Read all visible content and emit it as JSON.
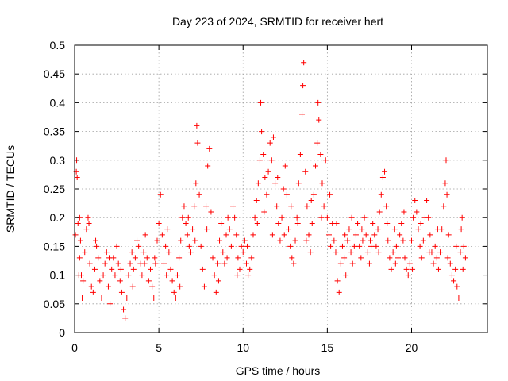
{
  "chart_data": {
    "type": "scatter",
    "title": "Day 223 of 2024, SRMTID for receiver hert",
    "xlabel": "GPS time / hours",
    "ylabel": "SRMTID / TECUs",
    "xlim": [
      0,
      24.5
    ],
    "ylim": [
      0,
      0.5
    ],
    "xticks": [
      0,
      5,
      10,
      15,
      20
    ],
    "xtick_labels": [
      "0",
      "5",
      "10",
      "15",
      "20"
    ],
    "yticks": [
      0,
      0.05,
      0.1,
      0.15,
      0.2,
      0.25,
      0.3,
      0.35,
      0.4,
      0.45,
      0.5
    ],
    "ytick_labels": [
      "0",
      "0.05",
      "0.1",
      "0.15",
      "0.2",
      "0.25",
      "0.3",
      "0.35",
      "0.4",
      "0.45",
      "0.5"
    ],
    "grid": true,
    "marker": "+",
    "color": "#ff0000",
    "series": [
      {
        "name": "SRMTID",
        "points": [
          [
            0.05,
            0.17
          ],
          [
            0.1,
            0.28
          ],
          [
            0.12,
            0.3
          ],
          [
            0.15,
            0.27
          ],
          [
            0.2,
            0.19
          ],
          [
            0.25,
            0.1
          ],
          [
            0.3,
            0.13
          ],
          [
            0.35,
            0.16
          ],
          [
            0.4,
            0.1
          ],
          [
            0.5,
            0.09
          ],
          [
            0.6,
            0.14
          ],
          [
            0.7,
            0.18
          ],
          [
            0.8,
            0.2
          ],
          [
            0.85,
            0.19
          ],
          [
            0.9,
            0.12
          ],
          [
            1.0,
            0.08
          ],
          [
            1.1,
            0.07
          ],
          [
            1.2,
            0.11
          ],
          [
            1.3,
            0.15
          ],
          [
            1.4,
            0.13
          ],
          [
            1.5,
            0.09
          ],
          [
            1.6,
            0.06
          ],
          [
            1.7,
            0.1
          ],
          [
            1.8,
            0.12
          ],
          [
            1.9,
            0.14
          ],
          [
            2.0,
            0.08
          ],
          [
            2.1,
            0.05
          ],
          [
            2.2,
            0.11
          ],
          [
            2.3,
            0.13
          ],
          [
            2.4,
            0.1
          ],
          [
            2.5,
            0.15
          ],
          [
            2.6,
            0.12
          ],
          [
            2.7,
            0.09
          ],
          [
            2.8,
            0.07
          ],
          [
            2.9,
            0.04
          ],
          [
            3.0,
            0.025
          ],
          [
            3.1,
            0.06
          ],
          [
            3.2,
            0.1
          ],
          [
            3.3,
            0.12
          ],
          [
            3.4,
            0.14
          ],
          [
            3.5,
            0.11
          ],
          [
            3.6,
            0.13
          ],
          [
            3.7,
            0.16
          ],
          [
            3.8,
            0.15
          ],
          [
            3.9,
            0.12
          ],
          [
            4.0,
            0.1
          ],
          [
            4.1,
            0.14
          ],
          [
            4.2,
            0.17
          ],
          [
            4.3,
            0.13
          ],
          [
            4.4,
            0.09
          ],
          [
            4.5,
            0.11
          ],
          [
            4.6,
            0.08
          ],
          [
            4.7,
            0.06
          ],
          [
            4.8,
            0.12
          ],
          [
            4.9,
            0.16
          ],
          [
            5.0,
            0.19
          ],
          [
            5.1,
            0.24
          ],
          [
            5.2,
            0.17
          ],
          [
            5.3,
            0.12
          ],
          [
            5.4,
            0.15
          ],
          [
            5.5,
            0.18
          ],
          [
            5.6,
            0.14
          ],
          [
            5.7,
            0.11
          ],
          [
            5.8,
            0.09
          ],
          [
            5.9,
            0.07
          ],
          [
            6.0,
            0.06
          ],
          [
            6.1,
            0.1
          ],
          [
            6.2,
            0.13
          ],
          [
            6.3,
            0.16
          ],
          [
            6.4,
            0.2
          ],
          [
            6.5,
            0.22
          ],
          [
            6.6,
            0.19
          ],
          [
            6.7,
            0.17
          ],
          [
            6.8,
            0.15
          ],
          [
            6.9,
            0.14
          ],
          [
            7.0,
            0.18
          ],
          [
            7.1,
            0.22
          ],
          [
            7.2,
            0.26
          ],
          [
            7.25,
            0.36
          ],
          [
            7.3,
            0.33
          ],
          [
            7.4,
            0.24
          ],
          [
            7.5,
            0.15
          ],
          [
            7.6,
            0.11
          ],
          [
            7.7,
            0.08
          ],
          [
            7.8,
            0.22
          ],
          [
            7.9,
            0.29
          ],
          [
            8.0,
            0.32
          ],
          [
            8.1,
            0.21
          ],
          [
            8.2,
            0.13
          ],
          [
            8.3,
            0.1
          ],
          [
            8.4,
            0.07
          ],
          [
            8.5,
            0.12
          ],
          [
            8.6,
            0.16
          ],
          [
            8.7,
            0.19
          ],
          [
            8.8,
            0.14
          ],
          [
            8.9,
            0.12
          ],
          [
            9.0,
            0.17
          ],
          [
            9.1,
            0.2
          ],
          [
            9.2,
            0.18
          ],
          [
            9.3,
            0.15
          ],
          [
            9.4,
            0.22
          ],
          [
            9.5,
            0.2
          ],
          [
            9.6,
            0.17
          ],
          [
            9.7,
            0.13
          ],
          [
            9.8,
            0.11
          ],
          [
            9.9,
            0.15
          ],
          [
            10.0,
            0.14
          ],
          [
            10.1,
            0.16
          ],
          [
            10.2,
            0.12
          ],
          [
            10.3,
            0.1
          ],
          [
            10.4,
            0.11
          ],
          [
            10.5,
            0.13
          ],
          [
            10.6,
            0.17
          ],
          [
            10.7,
            0.2
          ],
          [
            10.8,
            0.23
          ],
          [
            10.9,
            0.26
          ],
          [
            11.0,
            0.3
          ],
          [
            11.05,
            0.4
          ],
          [
            11.1,
            0.35
          ],
          [
            11.2,
            0.31
          ],
          [
            11.3,
            0.27
          ],
          [
            11.4,
            0.24
          ],
          [
            11.5,
            0.28
          ],
          [
            11.6,
            0.33
          ],
          [
            11.7,
            0.3
          ],
          [
            11.8,
            0.34
          ],
          [
            11.9,
            0.26
          ],
          [
            12.0,
            0.22
          ],
          [
            12.1,
            0.19
          ],
          [
            12.2,
            0.16
          ],
          [
            12.3,
            0.2
          ],
          [
            12.4,
            0.25
          ],
          [
            12.5,
            0.29
          ],
          [
            12.6,
            0.24
          ],
          [
            12.7,
            0.18
          ],
          [
            12.8,
            0.15
          ],
          [
            12.9,
            0.13
          ],
          [
            13.0,
            0.12
          ],
          [
            13.1,
            0.16
          ],
          [
            13.2,
            0.2
          ],
          [
            13.3,
            0.26
          ],
          [
            13.4,
            0.31
          ],
          [
            13.5,
            0.38
          ],
          [
            13.55,
            0.43
          ],
          [
            13.6,
            0.47
          ],
          [
            13.7,
            0.28
          ],
          [
            13.8,
            0.22
          ],
          [
            13.9,
            0.17
          ],
          [
            14.0,
            0.14
          ],
          [
            14.1,
            0.19
          ],
          [
            14.2,
            0.24
          ],
          [
            14.3,
            0.29
          ],
          [
            14.4,
            0.33
          ],
          [
            14.45,
            0.4
          ],
          [
            14.5,
            0.37
          ],
          [
            14.6,
            0.31
          ],
          [
            14.7,
            0.26
          ],
          [
            14.8,
            0.22
          ],
          [
            14.9,
            0.3
          ],
          [
            15.0,
            0.2
          ],
          [
            15.1,
            0.17
          ],
          [
            15.2,
            0.15
          ],
          [
            15.3,
            0.19
          ],
          [
            15.4,
            0.16
          ],
          [
            15.5,
            0.14
          ],
          [
            15.6,
            0.09
          ],
          [
            15.7,
            0.07
          ],
          [
            15.8,
            0.12
          ],
          [
            15.9,
            0.15
          ],
          [
            16.0,
            0.13
          ],
          [
            16.1,
            0.1
          ],
          [
            16.2,
            0.16
          ],
          [
            16.3,
            0.18
          ],
          [
            16.4,
            0.14
          ],
          [
            16.5,
            0.12
          ],
          [
            16.6,
            0.15
          ],
          [
            16.7,
            0.17
          ],
          [
            16.8,
            0.19
          ],
          [
            16.9,
            0.15
          ],
          [
            17.0,
            0.13
          ],
          [
            17.1,
            0.16
          ],
          [
            17.2,
            0.2
          ],
          [
            17.3,
            0.17
          ],
          [
            17.4,
            0.14
          ],
          [
            17.5,
            0.12
          ],
          [
            17.6,
            0.15
          ],
          [
            17.7,
            0.19
          ],
          [
            17.8,
            0.17
          ],
          [
            17.9,
            0.15
          ],
          [
            18.0,
            0.18
          ],
          [
            18.1,
            0.21
          ],
          [
            18.2,
            0.24
          ],
          [
            18.3,
            0.27
          ],
          [
            18.4,
            0.28
          ],
          [
            18.5,
            0.22
          ],
          [
            18.6,
            0.16
          ],
          [
            18.7,
            0.13
          ],
          [
            18.8,
            0.11
          ],
          [
            18.9,
            0.14
          ],
          [
            19.0,
            0.18
          ],
          [
            19.1,
            0.15
          ],
          [
            19.2,
            0.13
          ],
          [
            19.3,
            0.17
          ],
          [
            19.4,
            0.19
          ],
          [
            19.5,
            0.16
          ],
          [
            19.6,
            0.13
          ],
          [
            19.7,
            0.11
          ],
          [
            19.8,
            0.1
          ],
          [
            19.9,
            0.12
          ],
          [
            20.0,
            0.16
          ],
          [
            20.1,
            0.2
          ],
          [
            20.2,
            0.23
          ],
          [
            20.3,
            0.21
          ],
          [
            20.4,
            0.18
          ],
          [
            20.5,
            0.15
          ],
          [
            20.6,
            0.13
          ],
          [
            20.7,
            0.16
          ],
          [
            20.8,
            0.2
          ],
          [
            20.9,
            0.23
          ],
          [
            21.0,
            0.2
          ],
          [
            21.1,
            0.17
          ],
          [
            21.2,
            0.14
          ],
          [
            21.3,
            0.12
          ],
          [
            21.4,
            0.15
          ],
          [
            21.5,
            0.13
          ],
          [
            21.6,
            0.11
          ],
          [
            21.7,
            0.14
          ],
          [
            21.8,
            0.18
          ],
          [
            21.9,
            0.22
          ],
          [
            22.0,
            0.26
          ],
          [
            22.05,
            0.3
          ],
          [
            22.1,
            0.24
          ],
          [
            22.2,
            0.17
          ],
          [
            22.3,
            0.12
          ],
          [
            22.4,
            0.1
          ],
          [
            22.5,
            0.09
          ],
          [
            22.6,
            0.11
          ],
          [
            22.7,
            0.08
          ],
          [
            22.8,
            0.06
          ],
          [
            22.9,
            0.14
          ],
          [
            22.95,
            0.18
          ],
          [
            23.0,
            0.2
          ],
          [
            23.1,
            0.15
          ],
          [
            23.2,
            0.13
          ],
          [
            0.3,
            0.2
          ],
          [
            0.45,
            0.06
          ],
          [
            1.25,
            0.16
          ],
          [
            2.05,
            0.13
          ],
          [
            2.75,
            0.11
          ],
          [
            3.45,
            0.08
          ],
          [
            4.15,
            0.12
          ],
          [
            4.75,
            0.13
          ],
          [
            5.45,
            0.1
          ],
          [
            6.25,
            0.08
          ],
          [
            6.75,
            0.2
          ],
          [
            7.15,
            0.16
          ],
          [
            7.85,
            0.18
          ],
          [
            8.55,
            0.09
          ],
          [
            9.05,
            0.13
          ],
          [
            9.65,
            0.1
          ],
          [
            10.25,
            0.15
          ],
          [
            10.85,
            0.19
          ],
          [
            11.25,
            0.21
          ],
          [
            11.75,
            0.17
          ],
          [
            12.05,
            0.27
          ],
          [
            12.45,
            0.17
          ],
          [
            12.85,
            0.22
          ],
          [
            13.25,
            0.19
          ],
          [
            13.75,
            0.16
          ],
          [
            14.05,
            0.23
          ],
          [
            14.65,
            0.2
          ],
          [
            15.15,
            0.24
          ],
          [
            15.55,
            0.19
          ],
          [
            16.05,
            0.17
          ],
          [
            16.45,
            0.2
          ],
          [
            17.05,
            0.18
          ],
          [
            17.55,
            0.16
          ],
          [
            18.05,
            0.14
          ],
          [
            18.55,
            0.19
          ],
          [
            19.05,
            0.12
          ],
          [
            19.55,
            0.21
          ],
          [
            20.05,
            0.11
          ],
          [
            20.55,
            0.19
          ],
          [
            21.05,
            0.14
          ],
          [
            21.55,
            0.18
          ],
          [
            22.15,
            0.13
          ],
          [
            22.65,
            0.15
          ],
          [
            23.05,
            0.11
          ]
        ]
      }
    ]
  }
}
